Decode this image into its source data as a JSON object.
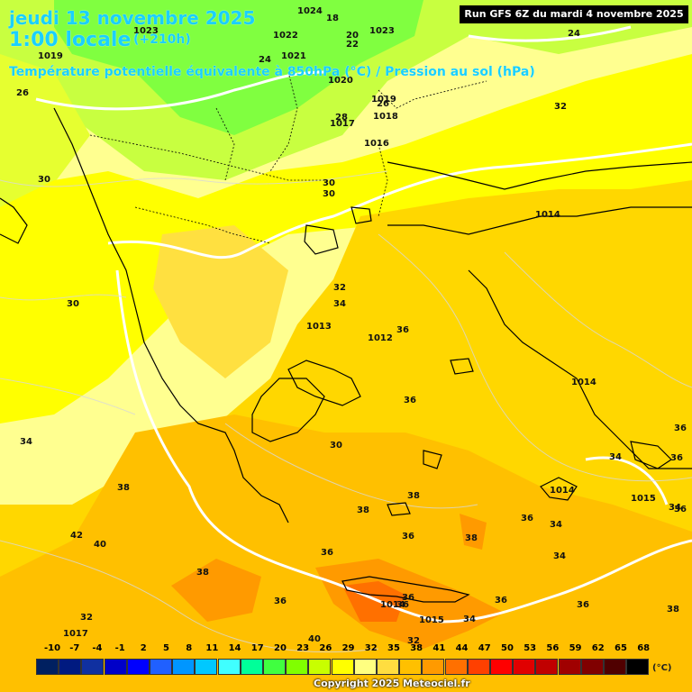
{
  "header": {
    "date": "jeudi 13 novembre 2025",
    "local_time": "1:00 locale",
    "lead": "(+210h)",
    "parameter": "Température potentielle équivalente à 850hPa (°C) / Pression au sol (hPa)",
    "run": "Run GFS 6Z du mardi 4 novembre 2025"
  },
  "legend": {
    "unit": "(°C)",
    "ticks": [
      "-10",
      "-7",
      "-4",
      "-1",
      "2",
      "5",
      "8",
      "11",
      "14",
      "17",
      "20",
      "23",
      "26",
      "29",
      "32",
      "35",
      "38",
      "41",
      "44",
      "47",
      "50",
      "53",
      "56",
      "59",
      "62",
      "65",
      "68"
    ],
    "colors": [
      "#002060",
      "#001a80",
      "#1030a0",
      "#0000c8",
      "#0000ff",
      "#2060ff",
      "#0096ff",
      "#00c8ff",
      "#40ffff",
      "#00ff99",
      "#40ff40",
      "#80ff00",
      "#c8ff00",
      "#ffff00",
      "#ffff80",
      "#ffdd40",
      "#ffc000",
      "#ff9a00",
      "#ff7000",
      "#ff4000",
      "#ff0000",
      "#e00000",
      "#c00000",
      "#a00000",
      "#800000",
      "#500000",
      "#000000"
    ]
  },
  "copyright": "Copyright 2025 Meteociel.fr",
  "map_labels": {
    "pressure": [
      "1024",
      "1023",
      "1022",
      "1021",
      "1019",
      "1020",
      "1019",
      "1017",
      "1018",
      "1016",
      "1014",
      "1013",
      "1012",
      "1014",
      "1014",
      "1015",
      "1014",
      "1015",
      "1017",
      "1023"
    ],
    "theta_e": [
      "18",
      "20",
      "22",
      "24",
      "24",
      "26",
      "26",
      "28",
      "30",
      "30",
      "30",
      "30",
      "32",
      "32",
      "34",
      "36",
      "36",
      "34",
      "30",
      "36",
      "38",
      "34",
      "36",
      "38",
      "38",
      "36",
      "36",
      "38",
      "40",
      "42",
      "36",
      "38",
      "36",
      "32",
      "34",
      "36",
      "34",
      "36",
      "36",
      "38",
      "36",
      "32",
      "40",
      "34",
      "34",
      "36"
    ]
  }
}
